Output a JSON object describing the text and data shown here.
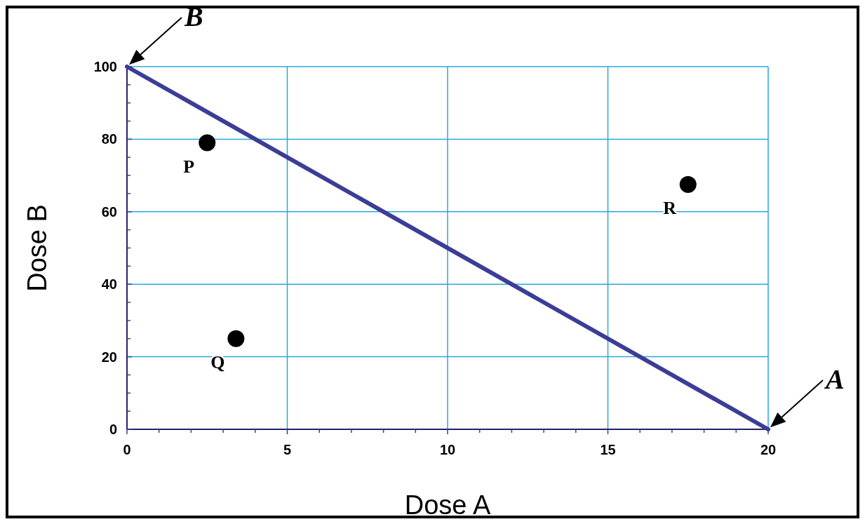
{
  "chart_data": {
    "type": "scatter",
    "xlabel": "Dose A",
    "ylabel": "Dose B",
    "xlim": [
      0,
      20
    ],
    "ylim": [
      0,
      100
    ],
    "xticks": [
      0,
      {
        "value": 1,
        "label": null
      },
      {
        "value": 2,
        "label": null
      },
      {
        "value": 3,
        "label": null
      },
      {
        "value": 4,
        "label": null
      },
      5,
      {
        "value": 6,
        "label": null
      },
      {
        "value": 7,
        "label": null
      },
      {
        "value": 8,
        "label": null
      },
      {
        "value": 9,
        "label": null
      },
      10,
      {
        "value": 11,
        "label": null
      },
      {
        "value": 12,
        "label": null
      },
      {
        "value": 13,
        "label": null
      },
      {
        "value": 14,
        "label": null
      },
      15,
      {
        "value": 16,
        "label": null
      },
      {
        "value": 17,
        "label": null
      },
      {
        "value": 18,
        "label": null
      },
      {
        "value": 19,
        "label": null
      },
      20
    ],
    "yticks": [
      0,
      {
        "value": 5,
        "label": null
      },
      {
        "value": 10,
        "label": null
      },
      {
        "value": 15,
        "label": null
      },
      20,
      {
        "value": 25,
        "label": null
      },
      {
        "value": 30,
        "label": null
      },
      {
        "value": 35,
        "label": null
      },
      40,
      {
        "value": 45,
        "label": null
      },
      {
        "value": 50,
        "label": null
      },
      {
        "value": 55,
        "label": null
      },
      60,
      {
        "value": 65,
        "label": null
      },
      {
        "value": 70,
        "label": null
      },
      {
        "value": 75,
        "label": null
      },
      80,
      {
        "value": 85,
        "label": null
      },
      {
        "value": 90,
        "label": null
      },
      {
        "value": 95,
        "label": null
      },
      100
    ],
    "grid": true,
    "series": [
      {
        "type": "line",
        "x": [
          0,
          20
        ],
        "values": [
          100,
          0
        ],
        "color": "#3b3d96",
        "marker": "none"
      },
      {
        "type": "scatter",
        "x": [
          2.5,
          3.4,
          17.5
        ],
        "values": [
          79,
          25,
          67.5
        ],
        "color": "#000000",
        "marker": "circle"
      }
    ],
    "annotations": [
      {
        "text": "P",
        "x": 2.5,
        "y": 79
      },
      {
        "text": "Q",
        "x": 3.4,
        "y": 25
      },
      {
        "text": "R",
        "x": 17.5,
        "y": 67.5
      },
      {
        "text": "B",
        "x": 0,
        "y": 100
      },
      {
        "text": "A",
        "x": 20,
        "y": 0
      }
    ]
  }
}
